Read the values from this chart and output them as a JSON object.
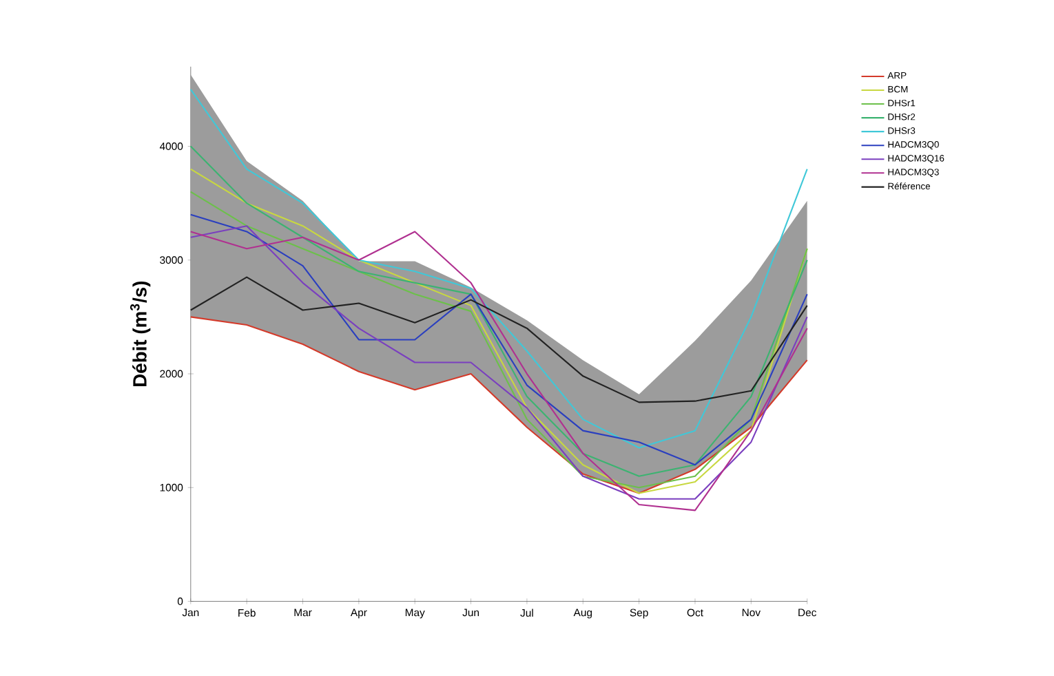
{
  "chart_data": {
    "type": "line",
    "ylabel": "Débit (m$^{3}$/s)",
    "categories": [
      "Jan",
      "Feb",
      "Mar",
      "Apr",
      "May",
      "Jun",
      "Jul",
      "Aug",
      "Sep",
      "Oct",
      "Nov",
      "Dec"
    ],
    "ylim": [
      0,
      4700
    ],
    "yticks": [
      0,
      1000,
      2000,
      3000,
      4000
    ],
    "grid": false,
    "legend": "top right",
    "marker": "none",
    "line_style": "solid",
    "series": [
      {
        "name": "ARP",
        "color": "#d43a2a",
        "values": [
          2500,
          2430,
          2260,
          2020,
          1860,
          2000,
          1530,
          1120,
          950,
          1160,
          1530,
          2120
        ]
      },
      {
        "name": "BCM",
        "color": "#c8d840",
        "values": [
          3800,
          3500,
          3300,
          3000,
          2800,
          2600,
          1700,
          1200,
          950,
          1050,
          1500,
          3100
        ]
      },
      {
        "name": "DHSr1",
        "color": "#6cc04a",
        "values": [
          3600,
          3300,
          3100,
          2900,
          2700,
          2550,
          1600,
          1100,
          1000,
          1100,
          1600,
          3100
        ]
      },
      {
        "name": "DHSr2",
        "color": "#3cb371",
        "values": [
          4000,
          3500,
          3200,
          2900,
          2800,
          2700,
          1800,
          1300,
          1100,
          1200,
          1800,
          3000
        ]
      },
      {
        "name": "DHSr3",
        "color": "#40c8d8",
        "values": [
          4500,
          3800,
          3500,
          3000,
          2900,
          2750,
          2200,
          1600,
          1350,
          1500,
          2500,
          3800
        ]
      },
      {
        "name": "HADCM3Q0",
        "color": "#2a3fbf",
        "values": [
          3400,
          3250,
          2950,
          2300,
          2300,
          2700,
          1900,
          1500,
          1400,
          1200,
          1600,
          2700
        ]
      },
      {
        "name": "HADCM3Q16",
        "color": "#7a3fbf",
        "values": [
          3200,
          3300,
          2800,
          2400,
          2100,
          2100,
          1700,
          1100,
          900,
          900,
          1400,
          2500
        ]
      },
      {
        "name": "HADCM3Q3",
        "color": "#b03090",
        "values": [
          3250,
          3100,
          3200,
          3000,
          3250,
          2800,
          2000,
          1300,
          850,
          800,
          1500,
          2400
        ]
      },
      {
        "name": "Référence",
        "color": "#222222",
        "values": [
          2560,
          2850,
          2560,
          2620,
          2450,
          2650,
          2400,
          1980,
          1750,
          1760,
          1850,
          2600
        ],
        "lower": [
          2500,
          2430,
          2260,
          2020,
          1860,
          2000,
          1530,
          1120,
          950,
          1160,
          1530,
          2120
        ],
        "upper": [
          4630,
          3870,
          3520,
          2990,
          2990,
          2760,
          2470,
          2120,
          1820,
          2290,
          2820,
          3520
        ]
      }
    ]
  }
}
